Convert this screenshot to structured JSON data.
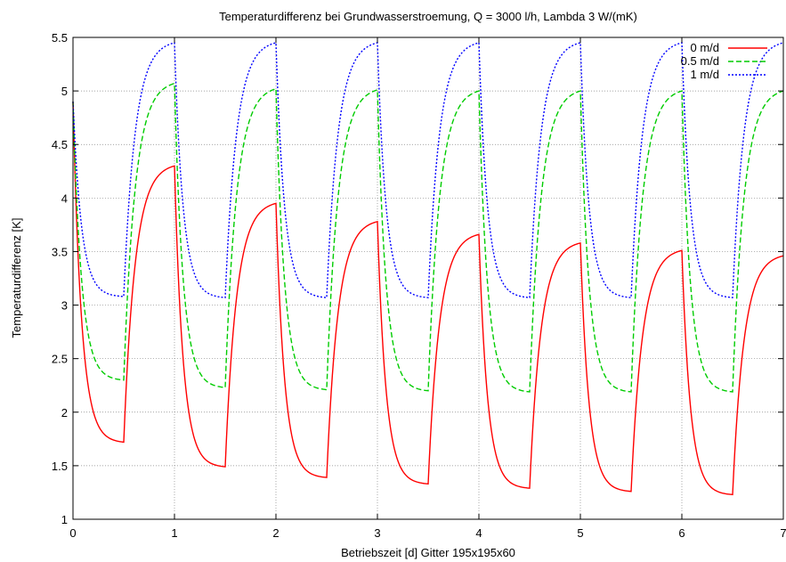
{
  "chart_data": {
    "type": "line",
    "title": "Temperaturdifferenz bei Grundwasserstroemung, Q = 3000 l/h, Lambda 3 W/(mK)",
    "xlabel": "Betriebszeit [d]  Gitter 195x195x60",
    "ylabel": "Temperaturdifferenz [K]",
    "xlim": [
      0,
      7
    ],
    "ylim": [
      1,
      5.5
    ],
    "xticks": [
      "0",
      "1",
      "2",
      "3",
      "4",
      "5",
      "6",
      "7"
    ],
    "yticks": [
      "1",
      "1.5",
      "2",
      "2.5",
      "3",
      "3.5",
      "4",
      "4.5",
      "5",
      "5.5"
    ],
    "grid": true,
    "legend_position": "top-right",
    "series": [
      {
        "name": "0  m/d",
        "color": "#ff0000",
        "dash": "solid",
        "start": 4.9,
        "cycles": [
          {
            "min": 1.72,
            "max": 4.3
          },
          {
            "min": 1.49,
            "max": 3.95
          },
          {
            "min": 1.39,
            "max": 3.78
          },
          {
            "min": 1.33,
            "max": 3.66
          },
          {
            "min": 1.29,
            "max": 3.58
          },
          {
            "min": 1.26,
            "max": 3.51
          },
          {
            "min": 1.23,
            "max": 3.46
          }
        ]
      },
      {
        "name": "0.5  m/d",
        "color": "#00cc00",
        "dash": "dashed",
        "start": 4.9,
        "cycles": [
          {
            "min": 2.3,
            "max": 5.07
          },
          {
            "min": 2.23,
            "max": 5.02
          },
          {
            "min": 2.21,
            "max": 5.01
          },
          {
            "min": 2.2,
            "max": 5.0
          },
          {
            "min": 2.19,
            "max": 5.0
          },
          {
            "min": 2.19,
            "max": 5.0
          },
          {
            "min": 2.19,
            "max": 5.0
          }
        ]
      },
      {
        "name": "1  m/d",
        "color": "#0000ff",
        "dash": "dotted",
        "start": 4.9,
        "cycles": [
          {
            "min": 3.08,
            "max": 5.45
          },
          {
            "min": 3.07,
            "max": 5.45
          },
          {
            "min": 3.07,
            "max": 5.45
          },
          {
            "min": 3.07,
            "max": 5.45
          },
          {
            "min": 3.07,
            "max": 5.45
          },
          {
            "min": 3.07,
            "max": 5.45
          },
          {
            "min": 3.07,
            "max": 5.45
          }
        ]
      }
    ]
  }
}
